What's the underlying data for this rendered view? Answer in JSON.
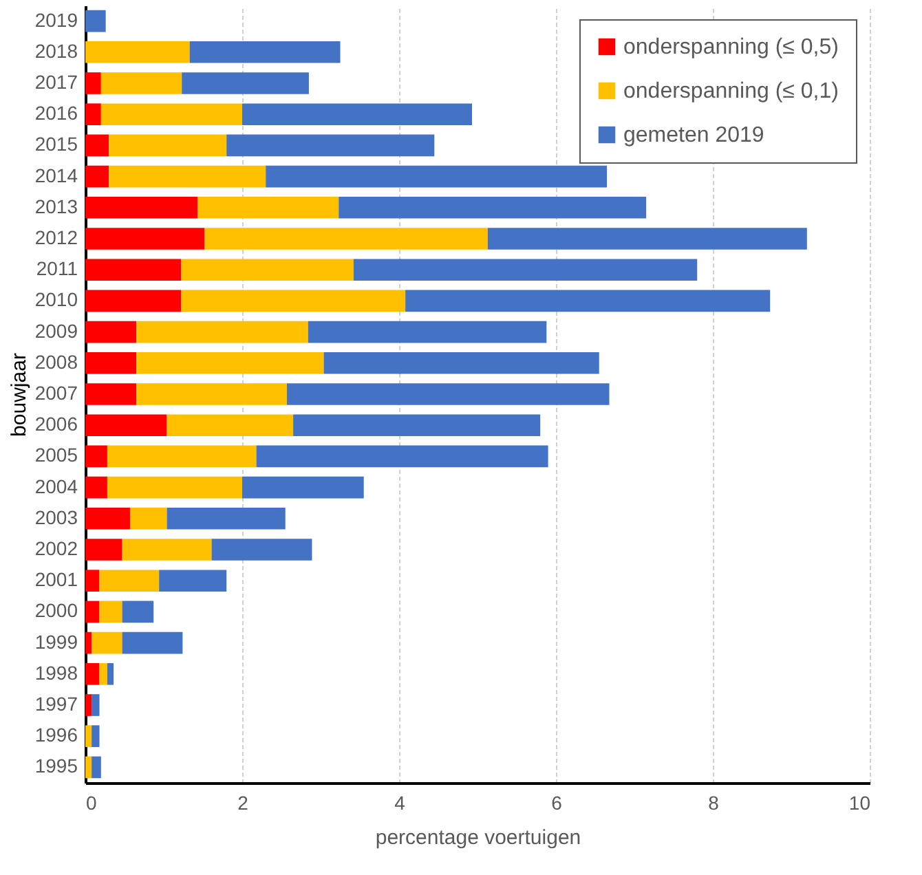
{
  "chart_data": {
    "type": "bar",
    "orientation": "horizontal",
    "stacked": true,
    "xlabel": "percentage voertuigen",
    "ylabel": "bouwjaar",
    "categories": [
      "2019",
      "2018",
      "2017",
      "2016",
      "2015",
      "2014",
      "2013",
      "2012",
      "2011",
      "2010",
      "2009",
      "2008",
      "2007",
      "2006",
      "2005",
      "2004",
      "2003",
      "2002",
      "2001",
      "2000",
      "1999",
      "1998",
      "1997",
      "1996",
      "1995"
    ],
    "series": [
      {
        "name": "onderspanning (≤ 0,5)",
        "color": "#ff0000",
        "values": [
          0,
          0,
          0.2,
          0.2,
          0.3,
          0.3,
          1.43,
          1.52,
          1.22,
          1.22,
          0.65,
          0.65,
          0.65,
          1.04,
          0.28,
          0.28,
          0.57,
          0.47,
          0.18,
          0.18,
          0.08,
          0.18,
          0.08,
          0,
          0
        ]
      },
      {
        "name": "onderspanning (≤ 0,1)",
        "color": "#ffc000",
        "values": [
          0,
          1.33,
          1.03,
          1.8,
          1.5,
          2.0,
          1.8,
          3.61,
          2.2,
          2.86,
          2.19,
          2.39,
          1.92,
          1.61,
          1.9,
          1.72,
          0.47,
          1.14,
          0.76,
          0.29,
          0.39,
          0.1,
          0,
          0.08,
          0.08
        ]
      },
      {
        "name": "gemeten 2019",
        "color": "#4472c4",
        "values": [
          0.26,
          1.92,
          1.62,
          2.93,
          2.65,
          4.35,
          3.92,
          4.07,
          4.38,
          4.65,
          3.04,
          3.51,
          4.11,
          3.15,
          3.72,
          1.55,
          1.51,
          1.28,
          0.86,
          0.4,
          0.77,
          0.08,
          0.1,
          0.1,
          0.12
        ]
      }
    ],
    "xlim": [
      0,
      10
    ],
    "xticks": [
      0,
      2,
      4,
      6,
      8,
      10
    ],
    "grid": "x",
    "legend": "top right"
  }
}
